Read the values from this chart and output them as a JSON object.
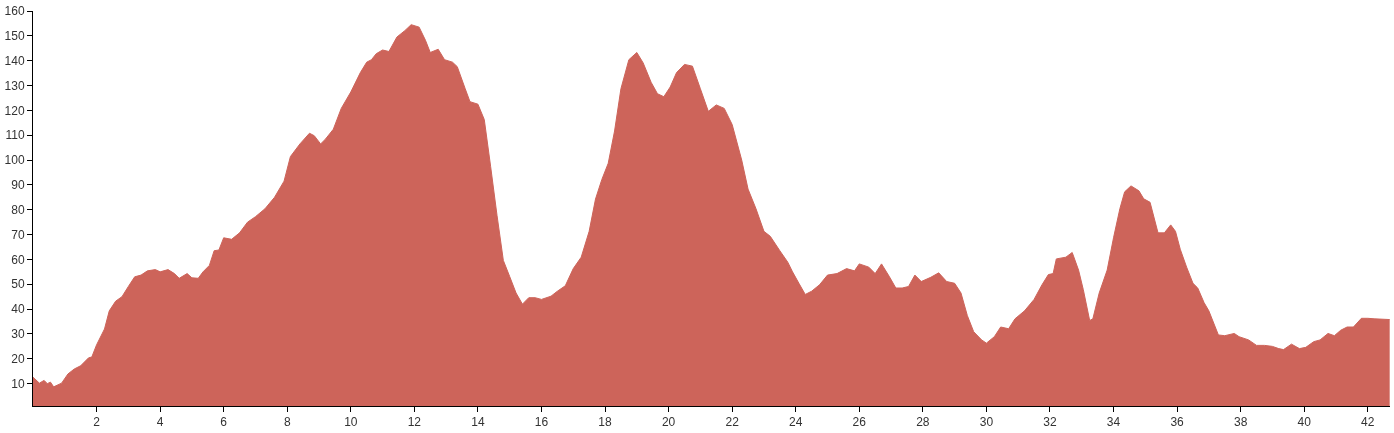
{
  "chart_data": {
    "type": "area",
    "color": "#cd645a",
    "x": [
      0,
      0.2,
      0.35,
      0.45,
      0.55,
      0.65,
      0.9,
      1.1,
      1.3,
      1.5,
      1.75,
      1.85,
      2.0,
      2.25,
      2.4,
      2.6,
      2.8,
      3.0,
      3.2,
      3.4,
      3.6,
      3.85,
      4.0,
      4.25,
      4.45,
      4.6,
      4.85,
      5.0,
      5.2,
      5.35,
      5.55,
      5.7,
      5.85,
      6.0,
      6.25,
      6.5,
      6.75,
      7.0,
      7.3,
      7.6,
      7.9,
      8.1,
      8.4,
      8.7,
      8.85,
      9.05,
      9.2,
      9.45,
      9.7,
      10.0,
      10.3,
      10.5,
      10.65,
      10.8,
      11.0,
      11.2,
      11.45,
      11.7,
      11.9,
      12.15,
      12.35,
      12.5,
      12.75,
      12.95,
      13.2,
      13.35,
      13.6,
      13.75,
      14.0,
      14.2,
      14.4,
      14.6,
      14.8,
      15.0,
      15.2,
      15.4,
      15.6,
      15.8,
      16.0,
      16.3,
      16.5,
      16.75,
      17.0,
      17.25,
      17.5,
      17.7,
      17.9,
      18.1,
      18.3,
      18.5,
      18.75,
      19.0,
      19.2,
      19.45,
      19.65,
      19.85,
      20.05,
      20.25,
      20.5,
      20.75,
      21.0,
      21.25,
      21.5,
      21.75,
      22.0,
      22.3,
      22.5,
      22.75,
      23.0,
      23.2,
      23.5,
      23.75,
      23.9,
      24.1,
      24.3,
      24.5,
      24.75,
      25.0,
      25.3,
      25.6,
      25.85,
      26.0,
      26.3,
      26.5,
      26.7,
      26.95,
      27.15,
      27.35,
      27.55,
      27.75,
      27.95,
      28.25,
      28.5,
      28.75,
      29.0,
      29.2,
      29.4,
      29.6,
      29.85,
      30.0,
      30.25,
      30.45,
      30.7,
      30.9,
      31.2,
      31.5,
      31.75,
      31.95,
      32.1,
      32.2,
      32.5,
      32.7,
      32.9,
      33.05,
      33.25,
      33.35,
      33.55,
      33.8,
      34.0,
      34.2,
      34.35,
      34.55,
      34.8,
      34.95,
      35.15,
      35.4,
      35.6,
      35.8,
      35.95,
      36.1,
      36.3,
      36.5,
      36.65,
      36.85,
      37.0,
      37.3,
      37.5,
      37.8,
      37.95,
      38.25,
      38.5,
      38.75,
      39.0,
      39.2,
      39.35,
      39.6,
      39.85,
      40.05,
      40.3,
      40.5,
      40.75,
      40.95,
      41.15,
      41.35,
      41.55,
      41.8,
      42.0,
      42.2,
      42.69
    ],
    "values": [
      12.6,
      10.2,
      11.3,
      10,
      10.6,
      8.7,
      10.2,
      13.9,
      15.9,
      17.2,
      20.4,
      20.7,
      25.6,
      32,
      39.3,
      43.2,
      45,
      49.1,
      53,
      53.7,
      55.4,
      55.9,
      55,
      55.9,
      54.3,
      52.4,
      54.3,
      52.6,
      52.4,
      55,
      57.6,
      63.5,
      63.8,
      68.7,
      68.1,
      70.7,
      75,
      77.2,
      80.4,
      85,
      91.5,
      101.4,
      106.5,
      110.8,
      109.8,
      106.5,
      108.4,
      112.4,
      120.8,
      127.4,
      135.2,
      139.4,
      140.4,
      142.8,
      144.3,
      143.7,
      149.5,
      152.1,
      154.5,
      153.5,
      148.2,
      143.3,
      144.6,
      140.4,
      139.4,
      137.6,
      128.7,
      123.5,
      122.5,
      116.3,
      97.4,
      77.8,
      59.6,
      53.1,
      46.5,
      42,
      44.6,
      44.6,
      43.9,
      45.2,
      47.2,
      49.4,
      56.3,
      60.9,
      71.3,
      84.3,
      92.2,
      98.7,
      111.7,
      128.7,
      140.4,
      143.3,
      139.1,
      131.3,
      126.7,
      125.5,
      129.4,
      135.2,
      138.5,
      137.8,
      128.7,
      119.6,
      122.2,
      120.8,
      114.3,
      100,
      88.3,
      80.4,
      71.3,
      69.3,
      63.5,
      58.9,
      55,
      50.4,
      45.9,
      47.2,
      49.8,
      53.7,
      54.3,
      56.3,
      55.4,
      58.2,
      56.9,
      54.3,
      58.2,
      53,
      48.5,
      48.5,
      49.1,
      53.7,
      51.1,
      52.8,
      54.6,
      51.1,
      50.4,
      46.5,
      37.4,
      30.9,
      27.6,
      26.3,
      28.9,
      32.8,
      32.1,
      36.1,
      39.3,
      43.9,
      49.8,
      53.9,
      54.3,
      60.2,
      60.9,
      62.8,
      55.7,
      47.8,
      35.4,
      36.1,
      46.5,
      55.7,
      68.7,
      80.4,
      87.2,
      89.6,
      87.6,
      84.4,
      83,
      70.7,
      70.7,
      73.9,
      71.3,
      64.1,
      56.9,
      50.4,
      48.5,
      42.6,
      39.3,
      29.6,
      29.3,
      30.2,
      28.9,
      27.6,
      25.4,
      25.4,
      25,
      24.1,
      23.7,
      25.9,
      24.1,
      24.6,
      26.9,
      27.6,
      30.2,
      29.3,
      31.5,
      32.8,
      32.8,
      36.3,
      36.3,
      36.1,
      35.8
    ],
    "xlim": [
      0,
      42.7
    ],
    "xticks": [
      2,
      4,
      6,
      8,
      10,
      12,
      14,
      16,
      18,
      20,
      22,
      24,
      26,
      28,
      30,
      32,
      34,
      36,
      38,
      40,
      42
    ],
    "ylim": [
      1,
      160
    ],
    "yticks": [
      10,
      20,
      30,
      40,
      50,
      60,
      70,
      80,
      90,
      100,
      110,
      120,
      130,
      140,
      150,
      160
    ]
  }
}
